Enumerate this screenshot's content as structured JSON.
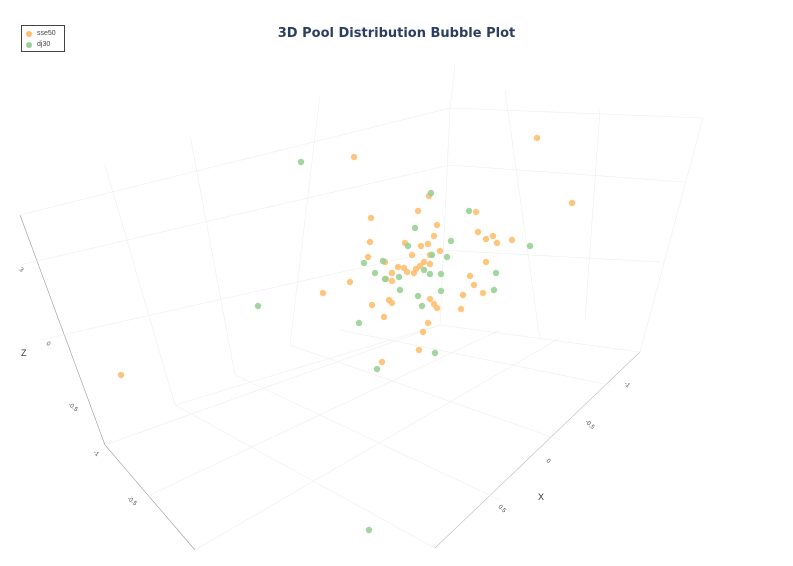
{
  "chart_data": {
    "type": "scatter",
    "title": "3D Pool Distribution Bubble Plot",
    "xlabel": "X",
    "ylabel": "",
    "zlabel": "Z",
    "x_ticks": [
      "-1",
      "-0.5",
      "0",
      "0.5"
    ],
    "y_ticks": [
      "-0.5",
      "-1"
    ],
    "z_ticks": [
      "3",
      "0",
      "-0.5"
    ],
    "legend_position": "top-left",
    "series": [
      {
        "name": "sse50",
        "color": "#fdbf6f",
        "points": [
          [
            537,
            138
          ],
          [
            572,
            203
          ],
          [
            354,
            157
          ],
          [
            121,
            375
          ],
          [
            429,
            196
          ],
          [
            418,
            211
          ],
          [
            476,
            212
          ],
          [
            371,
            218
          ],
          [
            437,
            225
          ],
          [
            478,
            232
          ],
          [
            486,
            239
          ],
          [
            493,
            236
          ],
          [
            497,
            243
          ],
          [
            512,
            240
          ],
          [
            405,
            243
          ],
          [
            421,
            246
          ],
          [
            370,
            242
          ],
          [
            434,
            236
          ],
          [
            428,
            244
          ],
          [
            412,
            255
          ],
          [
            430,
            255
          ],
          [
            368,
            257
          ],
          [
            385,
            262
          ],
          [
            398,
            267
          ],
          [
            404,
            268
          ],
          [
            420,
            266
          ],
          [
            424,
            262
          ],
          [
            430,
            264
          ],
          [
            392,
            273
          ],
          [
            386,
            279
          ],
          [
            392,
            281
          ],
          [
            407,
            272
          ],
          [
            414,
            273
          ],
          [
            350,
            282
          ],
          [
            323,
            293
          ],
          [
            486,
            262
          ],
          [
            470,
            276
          ],
          [
            474,
            285
          ],
          [
            483,
            293
          ],
          [
            463,
            295
          ],
          [
            389,
            300
          ],
          [
            392,
            303
          ],
          [
            430,
            299
          ],
          [
            434,
            304
          ],
          [
            437,
            308
          ],
          [
            461,
            309
          ],
          [
            372,
            305
          ],
          [
            384,
            317
          ],
          [
            428,
            323
          ],
          [
            423,
            332
          ],
          [
            419,
            350
          ],
          [
            382,
            362
          ],
          [
            416,
            269
          ],
          [
            440,
            251
          ]
        ]
      },
      {
        "name": "dj30",
        "color": "#98d095",
        "points": [
          [
            301,
            162
          ],
          [
            431,
            193
          ],
          [
            469,
            211
          ],
          [
            415,
            228
          ],
          [
            451,
            241
          ],
          [
            408,
            246
          ],
          [
            432,
            255
          ],
          [
            447,
            257
          ],
          [
            530,
            246
          ],
          [
            364,
            263
          ],
          [
            383,
            261
          ],
          [
            375,
            273
          ],
          [
            385,
            279
          ],
          [
            424,
            270
          ],
          [
            430,
            274
          ],
          [
            441,
            274
          ],
          [
            496,
            273
          ],
          [
            400,
            290
          ],
          [
            418,
            296
          ],
          [
            422,
            306
          ],
          [
            441,
            291
          ],
          [
            494,
            290
          ],
          [
            258,
            306
          ],
          [
            359,
            323
          ],
          [
            399,
            277
          ],
          [
            435,
            353
          ],
          [
            377,
            369
          ],
          [
            369,
            530
          ]
        ]
      }
    ]
  }
}
